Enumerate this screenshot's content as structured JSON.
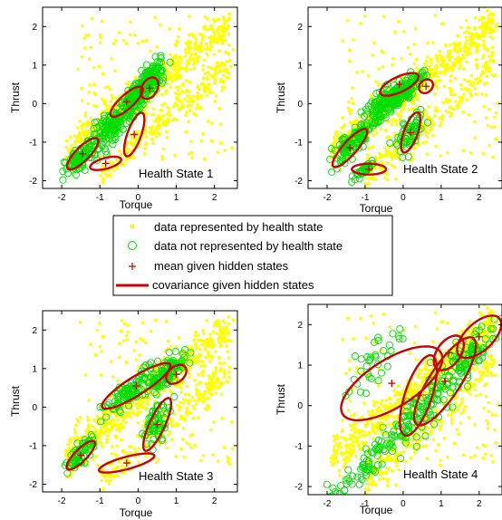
{
  "chart_data": [
    {
      "type": "scatter",
      "panel_label": "Health State 1",
      "xlabel": "Torque",
      "ylabel": "Thrust",
      "xlim": [
        -2.5,
        2.6
      ],
      "ylim": [
        -2.2,
        2.5
      ],
      "xticks": [
        -2,
        -1,
        0,
        1,
        2
      ],
      "yticks": [
        -2,
        -1,
        0,
        1,
        2
      ],
      "xtick_labels": [
        "-2",
        "-1",
        "0",
        "1",
        "2"
      ],
      "ytick_labels": [
        "-2",
        "-1",
        "0",
        "1",
        "2"
      ],
      "means": [
        {
          "x": -1.45,
          "y": -1.3
        },
        {
          "x": -0.85,
          "y": -1.55
        },
        {
          "x": -0.3,
          "y": 0.05
        },
        {
          "x": 0.3,
          "y": 0.4
        },
        {
          "x": -0.1,
          "y": -0.8
        }
      ],
      "ellipses": [
        {
          "cx": -1.45,
          "cy": -1.3,
          "rx": 0.55,
          "ry": 0.18,
          "angle_deg": 45
        },
        {
          "cx": -0.85,
          "cy": -1.55,
          "rx": 0.42,
          "ry": 0.14,
          "angle_deg": 15
        },
        {
          "cx": -0.3,
          "cy": 0.05,
          "rx": 0.55,
          "ry": 0.18,
          "angle_deg": 42
        },
        {
          "cx": 0.3,
          "cy": 0.4,
          "rx": 0.3,
          "ry": 0.2,
          "angle_deg": 60
        },
        {
          "cx": -0.1,
          "cy": -0.8,
          "rx": 0.6,
          "ry": 0.18,
          "angle_deg": 70
        }
      ],
      "green_clusters": [
        {
          "cx": -1.5,
          "cy": -1.4,
          "sx": 0.35,
          "sy": 0.35,
          "n": 90
        },
        {
          "cx": -0.7,
          "cy": -0.6,
          "sx": 0.45,
          "sy": 0.45,
          "n": 130
        },
        {
          "cx": 0.0,
          "cy": 0.2,
          "sx": 0.4,
          "sy": 0.35,
          "n": 160
        },
        {
          "cx": 0.3,
          "cy": 0.7,
          "sx": 0.3,
          "sy": 0.3,
          "n": 90
        }
      ]
    },
    {
      "type": "scatter",
      "panel_label": "Health State 2",
      "xlabel": "Torque",
      "ylabel": "Thrust",
      "xlim": [
        -2.5,
        2.6
      ],
      "ylim": [
        -2.2,
        2.5
      ],
      "xticks": [
        -2,
        -1,
        0,
        1,
        2
      ],
      "yticks": [
        -2,
        -1,
        0,
        1,
        2
      ],
      "xtick_labels": [
        "-2",
        "-1",
        "0",
        "1",
        "2"
      ],
      "ytick_labels": [
        "-2",
        "-1",
        "0",
        "1",
        "2"
      ],
      "means": [
        {
          "x": -1.4,
          "y": -1.15
        },
        {
          "x": -0.9,
          "y": -1.7
        },
        {
          "x": -0.1,
          "y": 0.5
        },
        {
          "x": 0.6,
          "y": 0.45
        },
        {
          "x": 0.2,
          "y": -0.75
        }
      ],
      "ellipses": [
        {
          "cx": -1.4,
          "cy": -1.15,
          "rx": 0.65,
          "ry": 0.18,
          "angle_deg": 48
        },
        {
          "cx": -0.9,
          "cy": -1.7,
          "rx": 0.45,
          "ry": 0.14,
          "angle_deg": 0
        },
        {
          "cx": -0.1,
          "cy": 0.5,
          "rx": 0.55,
          "ry": 0.2,
          "angle_deg": 25
        },
        {
          "cx": 0.6,
          "cy": 0.45,
          "rx": 0.2,
          "ry": 0.16,
          "angle_deg": 40
        },
        {
          "cx": 0.2,
          "cy": -0.75,
          "rx": 0.55,
          "ry": 0.18,
          "angle_deg": 70
        }
      ],
      "green_clusters": [
        {
          "cx": -1.3,
          "cy": -1.0,
          "sx": 0.45,
          "sy": 0.4,
          "n": 110
        },
        {
          "cx": -0.5,
          "cy": 0.0,
          "sx": 0.45,
          "sy": 0.4,
          "n": 120
        },
        {
          "cx": 0.1,
          "cy": 0.4,
          "sx": 0.4,
          "sy": 0.3,
          "n": 110
        },
        {
          "cx": 0.2,
          "cy": -0.8,
          "sx": 0.3,
          "sy": 0.4,
          "n": 60
        },
        {
          "cx": -1.0,
          "cy": -1.7,
          "sx": 0.3,
          "sy": 0.12,
          "n": 35
        }
      ]
    },
    {
      "type": "scatter",
      "panel_label": "Health State 3",
      "xlabel": "Torque",
      "ylabel": "Thrust",
      "xlim": [
        -2.5,
        2.6
      ],
      "ylim": [
        -2.2,
        2.5
      ],
      "xticks": [
        -2,
        -1,
        0,
        1,
        2
      ],
      "yticks": [
        -2,
        -1,
        0,
        1,
        2
      ],
      "xtick_labels": [
        "-2",
        "-1",
        "0",
        "1",
        "2"
      ],
      "ytick_labels": [
        "-2",
        "-1",
        "0",
        "1",
        "2"
      ],
      "means": [
        {
          "x": -1.5,
          "y": -1.25
        },
        {
          "x": -0.3,
          "y": -1.45
        },
        {
          "x": -0.05,
          "y": 0.55
        },
        {
          "x": 1.0,
          "y": 0.85
        },
        {
          "x": 0.5,
          "y": -0.45
        }
      ],
      "ellipses": [
        {
          "cx": -1.5,
          "cy": -1.25,
          "rx": 0.5,
          "ry": 0.16,
          "angle_deg": 45
        },
        {
          "cx": -0.3,
          "cy": -1.45,
          "rx": 0.75,
          "ry": 0.16,
          "angle_deg": 15
        },
        {
          "cx": -0.05,
          "cy": 0.55,
          "rx": 1.05,
          "ry": 0.24,
          "angle_deg": 32
        },
        {
          "cx": 1.0,
          "cy": 0.85,
          "rx": 0.3,
          "ry": 0.2,
          "angle_deg": 40
        },
        {
          "cx": 0.5,
          "cy": -0.45,
          "rx": 0.75,
          "ry": 0.2,
          "angle_deg": 65
        }
      ],
      "green_clusters": [
        {
          "cx": -1.5,
          "cy": -1.2,
          "sx": 0.3,
          "sy": 0.3,
          "n": 60
        },
        {
          "cx": -0.1,
          "cy": 0.5,
          "sx": 0.7,
          "sy": 0.35,
          "n": 110
        },
        {
          "cx": 0.8,
          "cy": 0.9,
          "sx": 0.4,
          "sy": 0.3,
          "n": 90
        },
        {
          "cx": 0.5,
          "cy": -0.4,
          "sx": 0.3,
          "sy": 0.5,
          "n": 60
        }
      ]
    },
    {
      "type": "scatter",
      "panel_label": "Health State 4",
      "xlabel": "Torque",
      "ylabel": "Thrust",
      "xlim": [
        -2.5,
        2.6
      ],
      "ylim": [
        -2.2,
        2.5
      ],
      "xticks": [
        -2,
        -1,
        0,
        1,
        2
      ],
      "yticks": [
        -2,
        -1,
        0,
        1,
        2
      ],
      "xtick_labels": [
        "-2",
        "-1",
        "0",
        "1",
        "2"
      ],
      "ytick_labels": [
        "-2",
        "-1",
        "0",
        "1",
        "2"
      ],
      "means": [
        {
          "x": -0.3,
          "y": 0.55
        },
        {
          "x": 0.4,
          "y": 0.25
        },
        {
          "x": 1.2,
          "y": 1.3
        },
        {
          "x": 1.1,
          "y": 0.6
        },
        {
          "x": 2.0,
          "y": 1.7
        }
      ],
      "ellipses": [
        {
          "cx": -0.3,
          "cy": 0.55,
          "rx": 1.5,
          "ry": 0.6,
          "angle_deg": 30
        },
        {
          "cx": 0.4,
          "cy": 0.25,
          "rx": 1.05,
          "ry": 0.35,
          "angle_deg": 70
        },
        {
          "cx": 1.2,
          "cy": 1.3,
          "rx": 0.5,
          "ry": 0.3,
          "angle_deg": 50
        },
        {
          "cx": 1.1,
          "cy": 0.6,
          "rx": 1.3,
          "ry": 0.4,
          "angle_deg": 55
        },
        {
          "cx": 2.0,
          "cy": 1.7,
          "rx": 0.7,
          "ry": 0.35,
          "angle_deg": 40
        }
      ],
      "green_clusters": [
        {
          "cx": 0.3,
          "cy": -0.3,
          "sx": 0.8,
          "sy": 0.6,
          "n": 110
        },
        {
          "cx": -1.0,
          "cy": -1.5,
          "sx": 0.8,
          "sy": 0.45,
          "n": 60
        },
        {
          "cx": 1.7,
          "cy": 1.2,
          "sx": 0.6,
          "sy": 0.6,
          "n": 100
        },
        {
          "cx": -0.8,
          "cy": 1.0,
          "sx": 0.6,
          "sy": 0.6,
          "n": 35
        }
      ]
    }
  ],
  "legend": {
    "items": [
      {
        "label": "data represented by health state",
        "marker": "dot"
      },
      {
        "label": "data not represented by health state",
        "marker": "circle"
      },
      {
        "label": "mean given hidden states",
        "marker": "plus"
      },
      {
        "label": "covariance given hidden states",
        "marker": "line"
      }
    ]
  },
  "colors": {
    "represented": "#ffff00",
    "not_represented": "#00dd00",
    "mean": "#cc0000",
    "covariance": "#cc0000"
  }
}
